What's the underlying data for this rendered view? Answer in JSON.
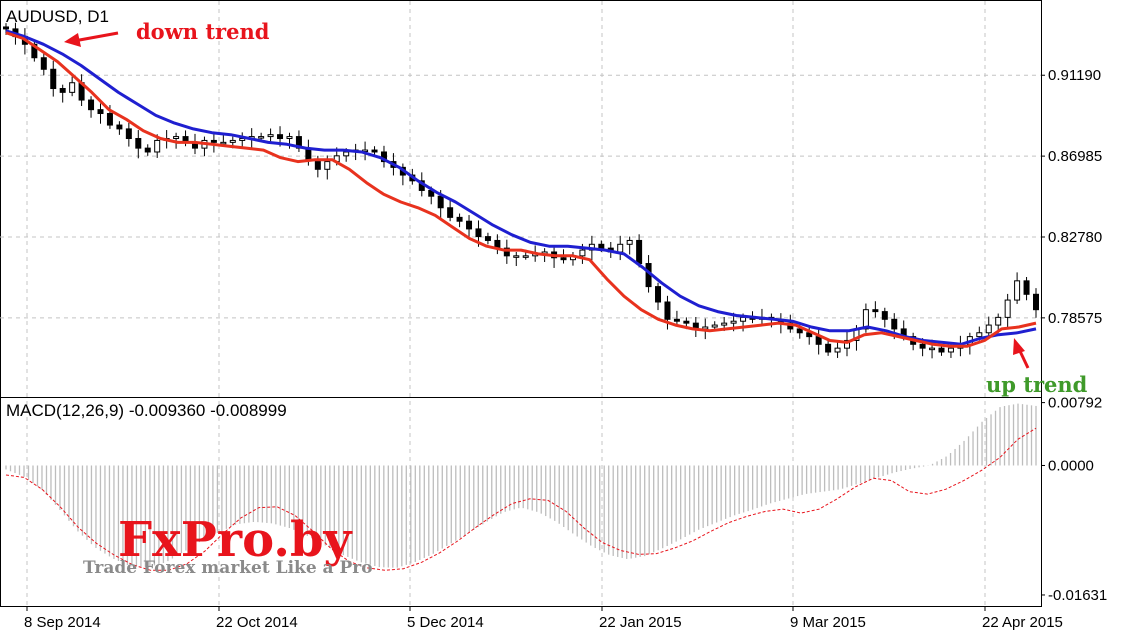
{
  "chart_data": [
    {
      "type": "candlestick",
      "title": "AUDUSD, D1",
      "symbol": "AUDUSD",
      "timeframe": "D1",
      "x_tick_labels": [
        "8 Sep 2014",
        "22 Oct 2014",
        "5 Dec 2014",
        "22 Jan 2015",
        "9 Mar 2015",
        "22 Apr 2015"
      ],
      "y_tick_labels": [
        "0.91190",
        "0.86985",
        "0.82780",
        "0.78575"
      ],
      "y_ticks": [
        0.9119,
        0.86985,
        0.8278,
        0.78575
      ],
      "ylim": [
        0.7446,
        0.9505
      ],
      "grid": true,
      "series": [
        {
          "role": "price",
          "color": "#000000",
          "values": [
            0.936,
            0.932,
            0.928,
            0.921,
            0.915,
            0.905,
            0.903,
            0.908,
            0.899,
            0.894,
            0.892,
            0.886,
            0.884,
            0.879,
            0.874,
            0.872,
            0.878,
            0.879,
            0.88,
            0.877,
            0.874,
            0.878,
            0.877,
            0.877,
            0.878,
            0.879,
            0.88,
            0.88,
            0.881,
            0.879,
            0.88,
            0.874,
            0.868,
            0.863,
            0.867,
            0.87,
            0.872,
            0.873,
            0.873,
            0.872,
            0.867,
            0.864,
            0.86,
            0.857,
            0.852,
            0.849,
            0.843,
            0.838,
            0.836,
            0.832,
            0.828,
            0.826,
            0.822,
            0.818,
            0.818,
            0.818,
            0.819,
            0.82,
            0.817,
            0.816,
            0.818,
            0.821,
            0.824,
            0.822,
            0.82,
            0.824,
            0.826,
            0.814,
            0.802,
            0.794,
            0.785,
            0.784,
            0.783,
            0.78,
            0.781,
            0.782,
            0.783,
            0.784,
            0.786,
            0.785,
            0.786,
            0.785,
            0.783,
            0.78,
            0.778,
            0.776,
            0.772,
            0.768,
            0.77,
            0.774,
            0.78,
            0.79,
            0.789,
            0.785,
            0.78,
            0.776,
            0.772,
            0.77,
            0.77,
            0.768,
            0.77,
            0.772,
            0.776,
            0.778,
            0.782,
            0.786,
            0.795,
            0.805,
            0.798,
            0.79
          ]
        },
        {
          "role": "moving average (red)",
          "color": "#e8321e",
          "values": [
            0.934,
            0.931,
            0.925,
            0.919,
            0.911,
            0.903,
            0.894,
            0.889,
            0.883,
            0.879,
            0.877,
            0.877,
            0.876,
            0.875,
            0.874,
            0.873,
            0.869,
            0.867,
            0.868,
            0.868,
            0.863,
            0.856,
            0.85,
            0.846,
            0.843,
            0.839,
            0.833,
            0.827,
            0.823,
            0.821,
            0.821,
            0.819,
            0.818,
            0.818,
            0.816,
            0.806,
            0.797,
            0.79,
            0.785,
            0.782,
            0.78,
            0.779,
            0.78,
            0.781,
            0.782,
            0.783,
            0.782,
            0.778,
            0.774,
            0.773,
            0.777,
            0.778,
            0.776,
            0.774,
            0.772,
            0.771,
            0.771,
            0.774,
            0.78,
            0.781,
            0.783
          ]
        },
        {
          "role": "moving average (blue)",
          "color": "#1f1fd0",
          "values": [
            0.935,
            0.932,
            0.928,
            0.923,
            0.917,
            0.91,
            0.903,
            0.897,
            0.891,
            0.887,
            0.884,
            0.882,
            0.881,
            0.879,
            0.877,
            0.876,
            0.874,
            0.873,
            0.873,
            0.872,
            0.869,
            0.864,
            0.857,
            0.851,
            0.846,
            0.84,
            0.834,
            0.829,
            0.825,
            0.823,
            0.823,
            0.822,
            0.821,
            0.819,
            0.812,
            0.804,
            0.797,
            0.792,
            0.789,
            0.787,
            0.786,
            0.785,
            0.784,
            0.781,
            0.779,
            0.779,
            0.781,
            0.779,
            0.776,
            0.774,
            0.773,
            0.772,
            0.775,
            0.777,
            0.778,
            0.78
          ]
        }
      ]
    },
    {
      "type": "bar",
      "title": "MACD(12,26,9) -0.009360 -0.008999",
      "indicator": "MACD(12,26,9)",
      "readouts": [
        "-0.009360",
        "-0.008999"
      ],
      "y_tick_labels": [
        "0.00792",
        "0.0000",
        "-0.01631"
      ],
      "y_ticks": [
        0.00792,
        0.0,
        -0.01631
      ],
      "ylim": [
        -0.0177,
        0.0085
      ],
      "series": [
        {
          "role": "histogram",
          "color": "#bdbdbd",
          "values": [
            -0.0005,
            -0.0014,
            -0.003,
            -0.0055,
            -0.0082,
            -0.0103,
            -0.0117,
            -0.0127,
            -0.0128,
            -0.0122,
            -0.0109,
            -0.0095,
            -0.0084,
            -0.0074,
            -0.0071,
            -0.0073,
            -0.0079,
            -0.0089,
            -0.0101,
            -0.0113,
            -0.0122,
            -0.0128,
            -0.0129,
            -0.0122,
            -0.0112,
            -0.0099,
            -0.0086,
            -0.0072,
            -0.0059,
            -0.0053,
            -0.0059,
            -0.0071,
            -0.0087,
            -0.0102,
            -0.0113,
            -0.0118,
            -0.0114,
            -0.0104,
            -0.0093,
            -0.0081,
            -0.0072,
            -0.0063,
            -0.0056,
            -0.0048,
            -0.0042,
            -0.0036,
            -0.0033,
            -0.003,
            -0.0023,
            -0.0016,
            -0.0009,
            -0.0004,
            0.0,
            0.0012,
            0.0032,
            0.0056,
            0.0074,
            0.0078,
            0.0075
          ]
        },
        {
          "role": "signal (dashed)",
          "color": "#e8141c",
          "values": [
            -0.0012,
            -0.0015,
            -0.003,
            -0.0052,
            -0.0078,
            -0.0098,
            -0.0113,
            -0.0125,
            -0.0132,
            -0.0132,
            -0.0124,
            -0.0108,
            -0.0086,
            -0.0066,
            -0.0053,
            -0.0052,
            -0.0063,
            -0.0083,
            -0.0105,
            -0.0121,
            -0.0129,
            -0.0132,
            -0.013,
            -0.0122,
            -0.011,
            -0.0095,
            -0.0078,
            -0.0062,
            -0.0048,
            -0.0042,
            -0.0044,
            -0.0058,
            -0.0079,
            -0.0097,
            -0.0107,
            -0.0112,
            -0.0111,
            -0.0104,
            -0.0095,
            -0.0083,
            -0.0072,
            -0.0064,
            -0.0058,
            -0.0055,
            -0.006,
            -0.0055,
            -0.0042,
            -0.0027,
            -0.0016,
            -0.0019,
            -0.0033,
            -0.0036,
            -0.003,
            -0.0019,
            -0.0006,
            0.001,
            0.0033,
            0.0047
          ]
        }
      ]
    }
  ],
  "annotations": {
    "down_trend": "down trend",
    "up_trend": "up trend"
  },
  "watermark": {
    "brand": "FxPro.by",
    "tagline": "Trade Forex market Like a Pro"
  },
  "colors": {
    "annotation_red": "#e8141c",
    "annotation_green": "#3f9a2a",
    "ema_red": "#e8321e",
    "ema_blue": "#1f1fd0"
  }
}
